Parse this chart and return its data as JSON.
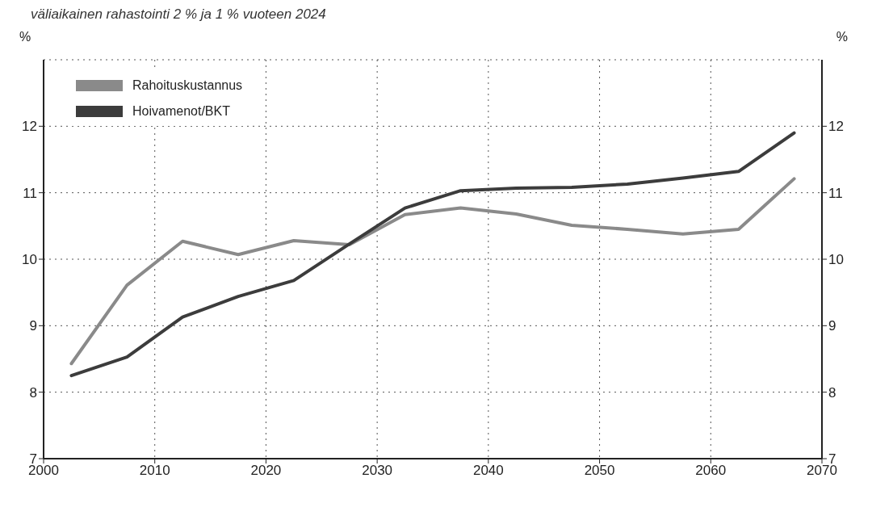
{
  "chart_data": {
    "type": "line",
    "title": "väliaikainen rahastointi 2 % ja 1 % vuoteen 2024",
    "ylabel": "%",
    "y2label": "%",
    "x": [
      2002.5,
      2007.5,
      2012.5,
      2017.5,
      2022.5,
      2027.5,
      2032.5,
      2037.5,
      2042.5,
      2047.5,
      2052.5,
      2057.5,
      2062.5,
      2067.5
    ],
    "series": [
      {
        "name": "Rahoituskustannus",
        "color": "#8a8a8a",
        "values": [
          8.43,
          9.61,
          10.27,
          10.07,
          10.28,
          10.22,
          10.67,
          10.77,
          10.68,
          10.51,
          10.45,
          10.38,
          10.45,
          11.21
        ]
      },
      {
        "name": "Hoivamenot/BKT",
        "color": "#3c3c3c",
        "values": [
          8.25,
          8.53,
          9.13,
          9.44,
          9.68,
          10.23,
          10.77,
          11.03,
          11.07,
          11.08,
          11.13,
          11.22,
          11.32,
          11.9
        ]
      }
    ],
    "xlim": [
      2000,
      2070
    ],
    "xticks": [
      2000,
      2010,
      2020,
      2030,
      2040,
      2050,
      2060,
      2070
    ],
    "ylim": [
      7,
      13
    ],
    "yticks": [
      7,
      8,
      9,
      10,
      11,
      12
    ],
    "y2lim": [
      7,
      13
    ],
    "y2ticks": [
      7,
      8,
      9,
      10,
      11,
      12
    ],
    "grid": true,
    "legend": "top left",
    "marker": "none",
    "line_style": "solid"
  }
}
